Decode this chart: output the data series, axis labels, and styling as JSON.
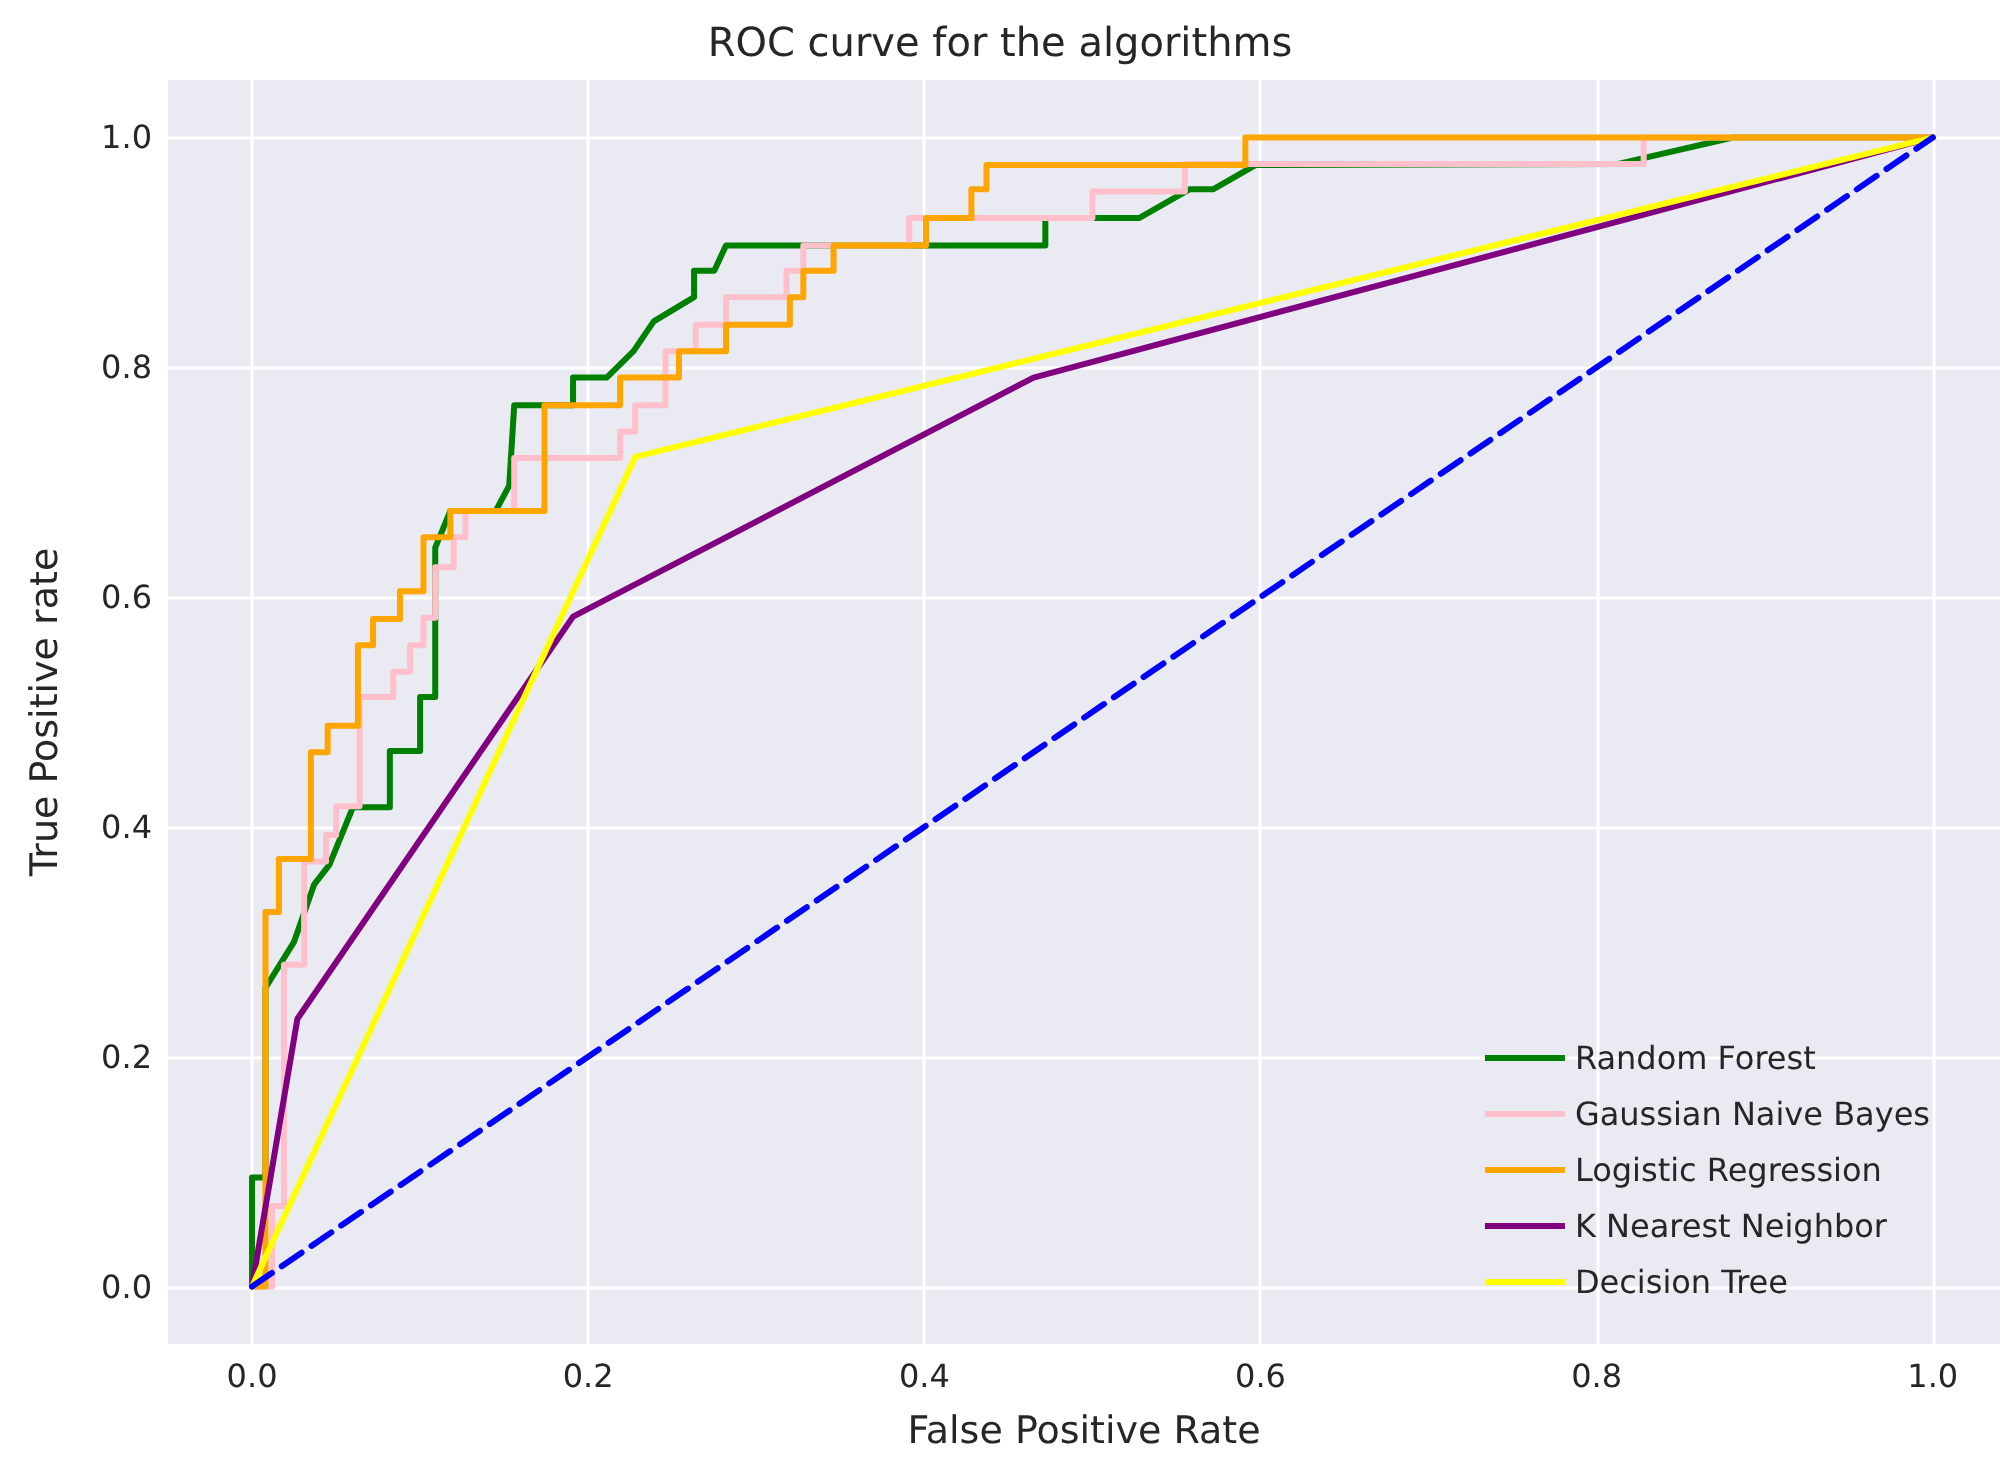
{
  "chart_data": {
    "type": "line",
    "title": "ROC curve for the algorithms",
    "xlabel": "False Positive Rate",
    "ylabel": "True Positive rate",
    "xlim": [
      -0.05,
      1.04
    ],
    "ylim": [
      -0.05,
      1.05
    ],
    "xticks": [
      {
        "value": 0,
        "label": "0.0"
      },
      0.2,
      0.4,
      0.6,
      0.8,
      {
        "value": 1,
        "label": "1.0"
      }
    ],
    "yticks": [
      {
        "value": 0,
        "label": "0.0"
      },
      0.2,
      0.4,
      0.6,
      0.8,
      {
        "value": 1,
        "label": "1.0"
      }
    ],
    "grid": true,
    "legend": "bottom right",
    "marker": "none",
    "series": [
      {
        "name": "Random Forest",
        "color": "#008000",
        "x": [
          0,
          0,
          0.008,
          0.008,
          0.025,
          0.025,
          0.037,
          0.037,
          0.046,
          0.06,
          0.082,
          0.082,
          0.1,
          0.1,
          0.109,
          0.109,
          0.118,
          0.145,
          0.153,
          0.156,
          0.191,
          0.191,
          0.211,
          0.227,
          0.239,
          0.263,
          0.263,
          0.275,
          0.282,
          0.472,
          0.472,
          0.528,
          0.558,
          0.572,
          0.597,
          0.813,
          0.881,
          1
        ],
        "values": [
          0,
          0.095,
          0.095,
          0.26,
          0.3,
          0.3,
          0.35,
          0.35,
          0.367,
          0.417,
          0.417,
          0.466,
          0.466,
          0.513,
          0.513,
          0.643,
          0.675,
          0.675,
          0.697,
          0.767,
          0.767,
          0.791,
          0.791,
          0.814,
          0.84,
          0.861,
          0.884,
          0.884,
          0.906,
          0.906,
          0.93,
          0.93,
          0.955,
          0.955,
          0.976,
          0.977,
          1,
          1
        ]
      },
      {
        "name": "Gaussian Naive Bayes",
        "color": "#ffc0cb",
        "x": [
          0,
          0.012,
          0.012,
          0.019,
          0.019,
          0.031,
          0.031,
          0.044,
          0.044,
          0.05,
          0.05,
          0.064,
          0.064,
          0.084,
          0.084,
          0.094,
          0.094,
          0.102,
          0.102,
          0.109,
          0.109,
          0.12,
          0.12,
          0.127,
          0.127,
          0.156,
          0.156,
          0.219,
          0.219,
          0.228,
          0.228,
          0.246,
          0.246,
          0.264,
          0.264,
          0.282,
          0.282,
          0.318,
          0.318,
          0.328,
          0.328,
          0.391,
          0.391,
          0.5,
          0.5,
          0.555,
          0.555,
          0.828,
          0.828,
          1
        ],
        "values": [
          0,
          0,
          0.07,
          0.07,
          0.28,
          0.28,
          0.37,
          0.37,
          0.393,
          0.393,
          0.418,
          0.418,
          0.513,
          0.513,
          0.535,
          0.535,
          0.558,
          0.558,
          0.582,
          0.582,
          0.626,
          0.626,
          0.652,
          0.652,
          0.675,
          0.675,
          0.721,
          0.721,
          0.744,
          0.744,
          0.767,
          0.767,
          0.814,
          0.814,
          0.837,
          0.837,
          0.861,
          0.861,
          0.884,
          0.884,
          0.906,
          0.906,
          0.93,
          0.93,
          0.953,
          0.953,
          0.977,
          0.977,
          1,
          1
        ]
      },
      {
        "name": "Logistic Regression",
        "color": "#ffa500",
        "x": [
          0,
          0.008,
          0.008,
          0.016,
          0.016,
          0.035,
          0.035,
          0.045,
          0.045,
          0.063,
          0.063,
          0.072,
          0.072,
          0.088,
          0.088,
          0.102,
          0.102,
          0.118,
          0.118,
          0.174,
          0.174,
          0.219,
          0.219,
          0.254,
          0.254,
          0.282,
          0.282,
          0.32,
          0.32,
          0.328,
          0.328,
          0.346,
          0.346,
          0.401,
          0.401,
          0.428,
          0.428,
          0.437,
          0.437,
          0.591,
          0.591,
          1
        ],
        "values": [
          0,
          0,
          0.326,
          0.326,
          0.372,
          0.372,
          0.465,
          0.465,
          0.488,
          0.488,
          0.558,
          0.558,
          0.581,
          0.581,
          0.605,
          0.605,
          0.652,
          0.652,
          0.675,
          0.675,
          0.767,
          0.767,
          0.791,
          0.791,
          0.814,
          0.814,
          0.837,
          0.837,
          0.861,
          0.861,
          0.884,
          0.884,
          0.906,
          0.906,
          0.93,
          0.93,
          0.955,
          0.955,
          0.976,
          0.976,
          1,
          1
        ]
      },
      {
        "name": "K Nearest Neighbor",
        "color": "#800080",
        "x": [
          0,
          0.027,
          0.191,
          0.465,
          1
        ],
        "values": [
          0,
          0.233,
          0.583,
          0.791,
          1
        ]
      },
      {
        "name": "Decision Tree",
        "color": "#ffff00",
        "x": [
          0,
          0.228,
          1
        ],
        "values": [
          0,
          0.722,
          1
        ]
      },
      {
        "color": "#0000ff",
        "line_style": "dashed",
        "x": [
          0,
          1
        ],
        "values": [
          0,
          1
        ]
      }
    ]
  }
}
